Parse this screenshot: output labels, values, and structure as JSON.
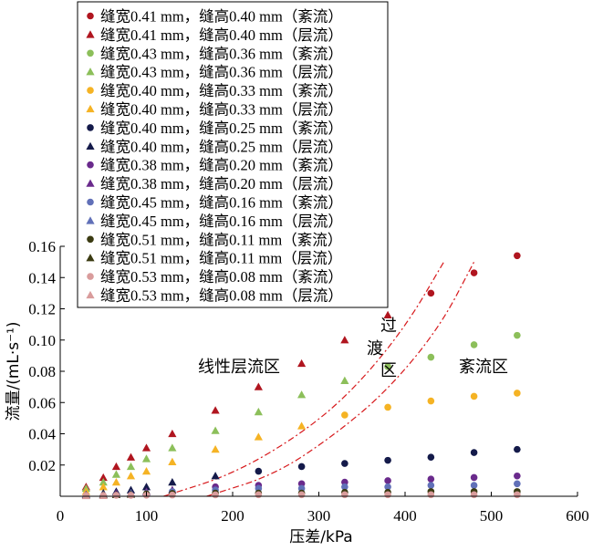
{
  "chart_data": {
    "type": "scatter",
    "xlabel": "压差/kPa",
    "ylabel": "流量/(mL·s⁻¹)",
    "xlim": [
      0,
      600
    ],
    "ylim": [
      0,
      0.16
    ],
    "xticks": [
      "0",
      "100",
      "200",
      "300",
      "400",
      "500",
      "600"
    ],
    "yticks": [
      "0.02",
      "0.04",
      "0.06",
      "0.08",
      "0.10",
      "0.12",
      "0.14",
      "0.16"
    ],
    "grid": false,
    "legend_position": "top-left",
    "region_labels": {
      "laminar": "线性层流区",
      "transition": [
        "过",
        "渡",
        "区"
      ],
      "turbulent": "紊流区"
    },
    "series": [
      {
        "name": "缝宽0.41 mm，缝高0.40 mm（紊流）",
        "marker": "circle",
        "color": "#b0151f",
        "x": [
          430,
          480,
          530
        ],
        "y": [
          0.13,
          0.143,
          0.154
        ]
      },
      {
        "name": "缝宽0.41 mm，缝高0.40 mm（层流）",
        "marker": "triangle",
        "color": "#b0151f",
        "x": [
          30,
          50,
          65,
          82,
          100,
          130,
          180,
          230,
          280,
          330,
          380
        ],
        "y": [
          0.006,
          0.012,
          0.019,
          0.025,
          0.031,
          0.04,
          0.055,
          0.07,
          0.085,
          0.1,
          0.116
        ]
      },
      {
        "name": "缝宽0.43 mm，缝高0.36 mm（紊流）",
        "marker": "circle",
        "color": "#8cbf5a",
        "x": [
          380,
          430,
          480,
          530
        ],
        "y": [
          0.083,
          0.089,
          0.097,
          0.103
        ]
      },
      {
        "name": "缝宽0.43 mm，缝高0.36 mm（层流）",
        "marker": "triangle",
        "color": "#8cbf5a",
        "x": [
          30,
          50,
          65,
          82,
          100,
          130,
          180,
          230,
          280,
          330
        ],
        "y": [
          0.005,
          0.009,
          0.014,
          0.019,
          0.024,
          0.031,
          0.042,
          0.054,
          0.065,
          0.074
        ]
      },
      {
        "name": "缝宽0.40 mm，缝高0.33 mm（紊流）",
        "marker": "circle",
        "color": "#f5b324",
        "x": [
          330,
          380,
          430,
          480,
          530
        ],
        "y": [
          0.052,
          0.057,
          0.061,
          0.064,
          0.066
        ]
      },
      {
        "name": "缝宽0.40 mm，缝高0.33 mm（层流）",
        "marker": "triangle",
        "color": "#f5b324",
        "x": [
          30,
          50,
          65,
          82,
          100,
          130,
          180,
          230,
          280
        ],
        "y": [
          0.003,
          0.006,
          0.009,
          0.013,
          0.016,
          0.022,
          0.03,
          0.038,
          0.045
        ]
      },
      {
        "name": "缝宽0.40 mm，缝高0.25 mm（紊流）",
        "marker": "circle",
        "color": "#141a4a",
        "x": [
          230,
          280,
          330,
          380,
          430,
          480,
          530
        ],
        "y": [
          0.016,
          0.019,
          0.021,
          0.023,
          0.025,
          0.028,
          0.03
        ]
      },
      {
        "name": "缝宽0.40 mm，缝高0.25 mm（层流）",
        "marker": "triangle",
        "color": "#141a4a",
        "x": [
          30,
          50,
          65,
          82,
          100,
          130,
          180
        ],
        "y": [
          0.001,
          0.002,
          0.003,
          0.004,
          0.006,
          0.009,
          0.013
        ]
      },
      {
        "name": "缝宽0.38 mm，缝高0.20 mm（紊流）",
        "marker": "circle",
        "color": "#6a2a8c",
        "x": [
          180,
          230,
          280,
          330,
          380,
          430,
          480,
          530
        ],
        "y": [
          0.006,
          0.007,
          0.008,
          0.009,
          0.01,
          0.011,
          0.012,
          0.013
        ]
      },
      {
        "name": "缝宽0.38 mm，缝高0.20 mm（层流）",
        "marker": "triangle",
        "color": "#6a2a8c",
        "x": [
          30,
          50,
          65,
          82,
          100,
          130
        ],
        "y": [
          0.001,
          0.001,
          0.002,
          0.002,
          0.003,
          0.004
        ]
      },
      {
        "name": "缝宽0.45 mm，缝高0.16 mm（紊流）",
        "marker": "circle",
        "color": "#6170b8",
        "x": [
          130,
          180,
          230,
          280,
          330,
          380,
          430,
          480,
          530
        ],
        "y": [
          0.003,
          0.004,
          0.005,
          0.005,
          0.006,
          0.006,
          0.007,
          0.007,
          0.008
        ]
      },
      {
        "name": "缝宽0.45 mm，缝高0.16 mm（层流）",
        "marker": "triangle",
        "color": "#6170b8",
        "x": [
          30,
          50,
          65,
          82,
          100
        ],
        "y": [
          0.001,
          0.001,
          0.001,
          0.002,
          0.002
        ]
      },
      {
        "name": "缝宽0.51 mm，缝高0.11 mm（紊流）",
        "marker": "circle",
        "color": "#3b3b12",
        "x": [
          100,
          130,
          180,
          230,
          280,
          330,
          380,
          430,
          480,
          530
        ],
        "y": [
          0.0015,
          0.0018,
          0.002,
          0.002,
          0.002,
          0.0025,
          0.0025,
          0.003,
          0.003,
          0.003
        ]
      },
      {
        "name": "缝宽0.51 mm，缝高0.11 mm（层流）",
        "marker": "triangle",
        "color": "#3b3b12",
        "x": [
          30,
          50,
          65,
          82
        ],
        "y": [
          0.0005,
          0.0008,
          0.001,
          0.0012
        ]
      },
      {
        "name": "缝宽0.53 mm，缝高0.08 mm（紊流）",
        "marker": "circle",
        "color": "#d99c9c",
        "x": [
          30,
          50,
          65,
          82,
          100,
          130,
          180,
          230,
          280,
          330,
          380,
          430,
          480,
          530
        ],
        "y": [
          0.0005,
          0.0005,
          0.0006,
          0.0006,
          0.0007,
          0.0008,
          0.0009,
          0.001,
          0.001,
          0.001,
          0.001,
          0.001,
          0.001,
          0.001
        ]
      },
      {
        "name": "缝宽0.53 mm，缝高0.08 mm（层流）",
        "marker": "triangle",
        "color": "#d99c9c",
        "x": [
          30,
          50
        ],
        "y": [
          0.0003,
          0.0004
        ]
      }
    ],
    "boundary_lines": [
      {
        "style": "dash-dot",
        "color": "#d7191c",
        "x": [
          120,
          200,
          280,
          340,
          400,
          445
        ],
        "y": [
          0.0,
          0.014,
          0.04,
          0.068,
          0.108,
          0.15
        ]
      },
      {
        "style": "dash-dot",
        "color": "#d7191c",
        "x": [
          170,
          250,
          320,
          380,
          440,
          480
        ],
        "y": [
          0.0,
          0.014,
          0.04,
          0.068,
          0.108,
          0.15
        ]
      }
    ]
  }
}
